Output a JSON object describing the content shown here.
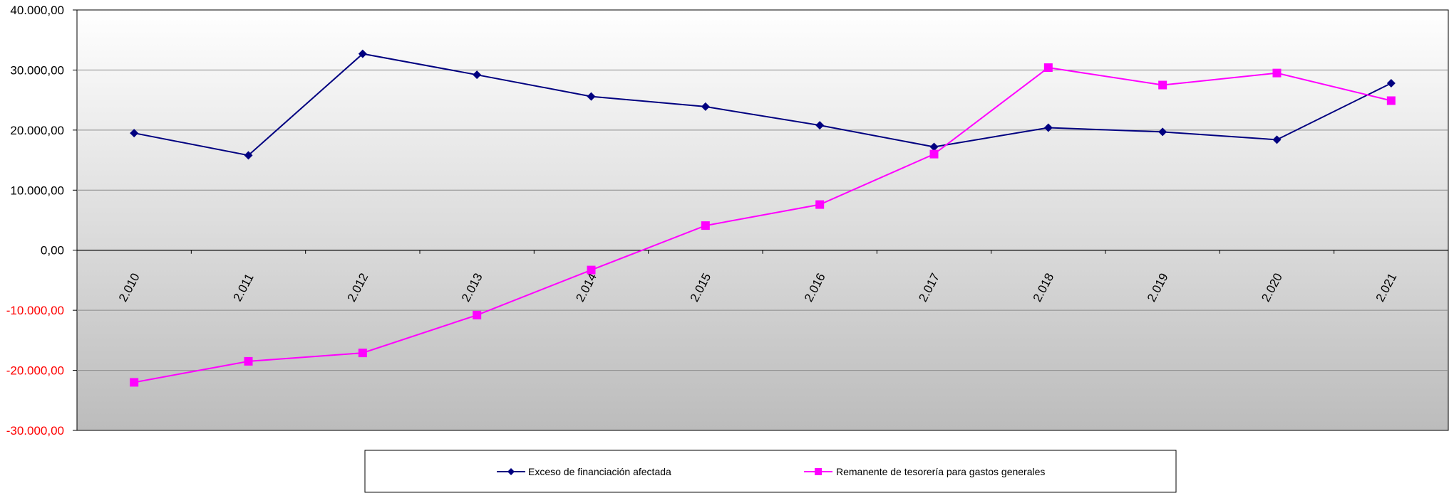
{
  "chart_data": {
    "type": "line",
    "categories": [
      "2.010",
      "2.011",
      "2.012",
      "2.013",
      "2.014",
      "2.015",
      "2.016",
      "2.017",
      "2.018",
      "2.019",
      "2.020",
      "2.021"
    ],
    "series": [
      {
        "name": "Exceso de financiación afectada",
        "color": "#000080",
        "marker": "diamond",
        "values": [
          19500,
          15800,
          32700,
          29200,
          25600,
          23900,
          20800,
          17200,
          20400,
          19700,
          18400,
          27800
        ]
      },
      {
        "name": "Remanente de tesorería para gastos generales",
        "color": "#ff00ff",
        "marker": "square",
        "values": [
          -22000,
          -18500,
          -17100,
          -10800,
          -3300,
          4100,
          7600,
          16000,
          30400,
          27500,
          29500,
          24900
        ]
      }
    ],
    "y_ticks": [
      "40.000,00",
      "30.000,00",
      "20.000,00",
      "10.000,00",
      "0,00",
      "-10.000,00",
      "-20.000,00",
      "-30.000,00"
    ],
    "ylim": [
      -30000,
      40000
    ],
    "y_tick_step": 10000,
    "negative_tick_color": "#ff0000",
    "grid": true,
    "legend_position": "bottom",
    "title": "",
    "xlabel": "",
    "ylabel": ""
  }
}
